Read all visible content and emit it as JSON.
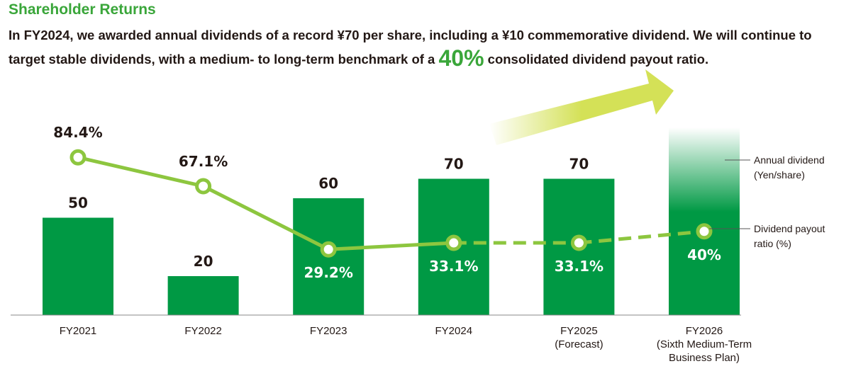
{
  "heading": "Shareholder Returns",
  "intro": {
    "text_before": "In FY2024, we awarded annual dividends of a record ¥70 per share, including a ¥10 commemorative dividend. We will continue to target stable dividends, with a medium- to long-term benchmark of a ",
    "highlight": "40%",
    "text_after": " consolidated dividend payout ratio."
  },
  "colors": {
    "bar": "#009944",
    "line": "#8dc63f",
    "arrow": "#d4e157",
    "heading": "#3aa63a"
  },
  "chart_data": {
    "type": "bar+line",
    "categories": [
      [
        "FY2021"
      ],
      [
        "FY2022"
      ],
      [
        "FY2023"
      ],
      [
        "FY2024"
      ],
      [
        "FY2025",
        "(Forecast)"
      ],
      [
        "FY2026",
        "(Sixth Medium-Term",
        "Business Plan)"
      ]
    ],
    "series": [
      {
        "name": "Annual dividend (Yen/share)",
        "type": "bar",
        "values": [
          50,
          20,
          60,
          70,
          70,
          null
        ],
        "labels": [
          "50",
          "20",
          "60",
          "70",
          "70",
          ""
        ]
      },
      {
        "name": "Dividend payout ratio (%)",
        "type": "line",
        "values": [
          84.4,
          67.1,
          29.2,
          33.1,
          33.1,
          40
        ],
        "labels": [
          "84.4%",
          "67.1%",
          "29.2%",
          "33.1%",
          "33.1%",
          "40%"
        ],
        "dashed_from_index": 3
      }
    ],
    "legend": {
      "bar_label": [
        "Annual dividend",
        "(Yen/share)"
      ],
      "line_label": [
        "Dividend payout",
        "ratio (%)"
      ],
      "placement": "right"
    },
    "target_bar_index": 5,
    "grid": false
  }
}
